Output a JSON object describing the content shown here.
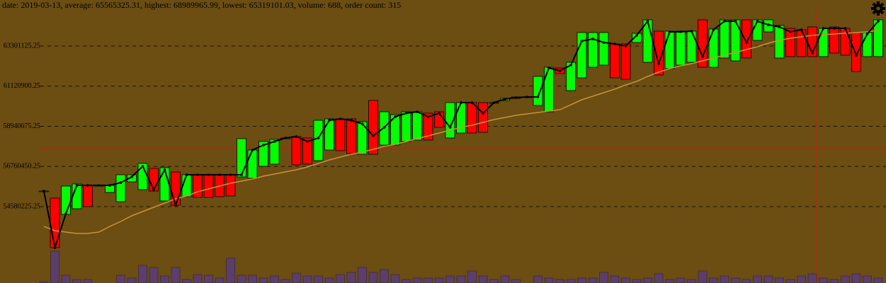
{
  "chart_data": {
    "type": "candlestick",
    "info": "date: 2019-03-13, average: 65565325.31, highest: 68989965.99, lowest: 65319101.03, volume: 688, order count: 315",
    "rise_color": "#00ff00",
    "fall_color": "#ff0000",
    "open": [
      55425000,
      55041000,
      54157000,
      54465000,
      55733000,
      55733000,
      55348000,
      54849000,
      55925000,
      55502000,
      56655000,
      54887000,
      56463000,
      55118000,
      56309000,
      56309000,
      56309000,
      56309000,
      56194000,
      56117000,
      56770000,
      56885000,
      58307000,
      58383000,
      58307000,
      57077000,
      57653000,
      59344000,
      59344000,
      57423000,
      60343000,
      57922000,
      57922000,
      58115000,
      58191000,
      59651000,
      59728000,
      58307000,
      58576000,
      60227000,
      60227000,
      60227000,
      60343000,
      60458000,
      60535000,
      60074000,
      59728000,
      62110000,
      60881000,
      61572000,
      62148000,
      62264000,
      63416000,
      63416000,
      63493000,
      62417000,
      64108000,
      62072000,
      62264000,
      62417000,
      64722000,
      62148000,
      62648000,
      62494000,
      64722000,
      63608000,
      64069000,
      62648000,
      64261000,
      64185000,
      64338000,
      62725000,
      64338000,
      64261000,
      64031000,
      62725000,
      62725000
    ],
    "close": [
      55425000,
      52352000,
      55694000,
      55809000,
      54580000,
      55733000,
      55733000,
      56309000,
      56309000,
      56924000,
      55425000,
      56693000,
      54657000,
      56309000,
      55079000,
      55079000,
      55118000,
      55156000,
      58268000,
      57653000,
      58115000,
      58230000,
      58307000,
      56847000,
      56885000,
      59267000,
      59344000,
      57615000,
      57461000,
      59190000,
      57423000,
      59728000,
      59574000,
      59728000,
      59728000,
      58191000,
      58883000,
      60227000,
      60227000,
      58576000,
      58614000,
      60227000,
      60458000,
      60535000,
      60535000,
      61649000,
      62148000,
      61803000,
      62417000,
      64031000,
      64031000,
      64031000,
      61572000,
      61495000,
      63992000,
      64722000,
      61726000,
      64108000,
      64108000,
      64108000,
      62148000,
      64223000,
      64722000,
      64722000,
      62648000,
      64722000,
      64722000,
      64415000,
      62725000,
      62725000,
      62725000,
      64261000,
      62917000,
      62802000,
      61918000,
      64031000,
      64722000
    ],
    "average_line": {
      "color": "#000000",
      "values": [
        55425000,
        52352000,
        54196000,
        55733000,
        55733000,
        55733000,
        55733000,
        55886000,
        56194000,
        56770000,
        55502000,
        56578000,
        54657000,
        56309000,
        56309000,
        56309000,
        56309000,
        56309000,
        56309000,
        57653000,
        57922000,
        58115000,
        58307000,
        58383000,
        58115000,
        58307000,
        59267000,
        59344000,
        59267000,
        59075000,
        58422000,
        58883000,
        59459000,
        59651000,
        59728000,
        59459000,
        59651000,
        58883000,
        60227000,
        60227000,
        59651000,
        60227000,
        60420000,
        60496000,
        60535000,
        60535000,
        62110000,
        61956000,
        62264000,
        63570000,
        63685000,
        63493000,
        63416000,
        63301000,
        63877000,
        64646000,
        62340000,
        64069000,
        64069000,
        64108000,
        62725000,
        64185000,
        64646000,
        64646000,
        63493000,
        64646000,
        64453000,
        64338000,
        64069000,
        64185000,
        62917000,
        64261000,
        64261000,
        64261000,
        62802000,
        63954000,
        64646000
      ]
    },
    "moving_average": {
      "color": "#c8923a",
      "values": [
        53504000,
        53274000,
        53197000,
        53120000,
        53120000,
        53197000,
        53504000,
        53773000,
        54081000,
        54311000,
        54542000,
        54772000,
        55003000,
        55156000,
        55387000,
        55541000,
        55694000,
        55848000,
        55963000,
        56078000,
        56232000,
        56347000,
        56463000,
        56578000,
        56731000,
        56924000,
        57116000,
        57269000,
        57423000,
        57538000,
        57692000,
        57846000,
        57961000,
        58115000,
        58268000,
        58422000,
        58576000,
        58729000,
        58883000,
        58998000,
        59152000,
        59305000,
        59421000,
        59536000,
        59613000,
        59690000,
        59766000,
        59843000,
        60112000,
        60381000,
        60573000,
        60765000,
        60957000,
        61188000,
        61380000,
        61649000,
        61879000,
        62072000,
        62225000,
        62340000,
        62494000,
        62648000,
        62802000,
        62955000,
        63109000,
        63262000,
        63455000,
        63608000,
        63723000,
        63800000,
        63877000,
        63916000,
        63954000,
        63992000,
        64031000,
        64069000,
        64146000
      ]
    },
    "volume": {
      "color": "#5b3e6c",
      "values": [
        106,
        2385,
        583,
        265,
        265,
        0,
        0,
        583,
        371,
        1325,
        1166,
        530,
        1166,
        265,
        636,
        583,
        371,
        1855,
        583,
        583,
        371,
        530,
        265,
        742,
        530,
        530,
        371,
        636,
        795,
        1166,
        795,
        1007,
        636,
        265,
        371,
        371,
        371,
        530,
        530,
        901,
        530,
        265,
        530,
        265,
        0,
        530,
        371,
        265,
        265,
        371,
        371,
        795,
        530,
        371,
        265,
        371,
        688,
        265,
        371,
        265,
        901,
        371,
        530,
        371,
        265,
        530,
        530,
        371,
        265,
        530,
        688,
        371,
        265,
        530,
        688,
        530,
        371
      ]
    },
    "ylim": [
      50431081,
      65798281
    ],
    "yticks": [
      54580225.25,
      56760450.25,
      58940675.25,
      61120900.25,
      63301125.25
    ],
    "y2lim": [
      0,
      5300
    ],
    "grid": true
  }
}
